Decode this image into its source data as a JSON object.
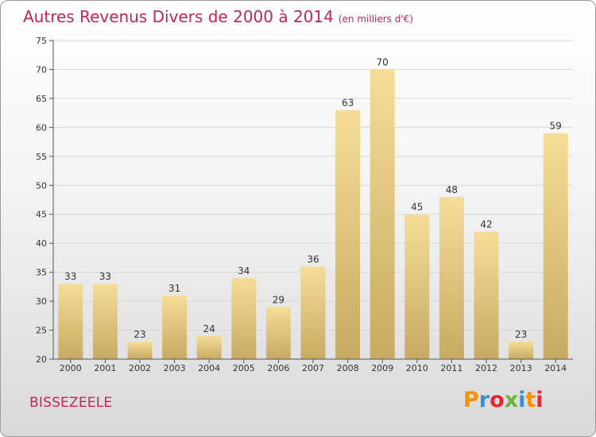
{
  "header": {
    "title": "Autres Revenus Divers de 2000 à 2014",
    "subtitle": "(en milliers d'€)"
  },
  "footer": {
    "town": "BISSEZEELE",
    "logo_text": "Proxiti"
  },
  "colors": {
    "title": "#c1265a",
    "bar_top": "#f5dd98",
    "bar_bottom": "#c7aa63",
    "logo_letters": [
      "#f39200",
      "#3d8fd1",
      "#e3262f",
      "#6fb23b",
      "#3d8fd1",
      "#f39200",
      "#e3262f"
    ]
  },
  "chart_data": {
    "type": "bar",
    "categories": [
      "2000",
      "2001",
      "2002",
      "2003",
      "2004",
      "2005",
      "2006",
      "2007",
      "2008",
      "2009",
      "2010",
      "2011",
      "2012",
      "2013",
      "2014"
    ],
    "values": [
      33,
      33,
      23,
      31,
      24,
      34,
      29,
      36,
      63,
      70,
      45,
      48,
      42,
      23,
      59
    ],
    "value_labels": [
      "33",
      "33",
      "23",
      "31",
      "24",
      "34",
      "29",
      "36",
      "63",
      "70",
      "45",
      "48",
      "42",
      "23",
      "59"
    ],
    "yticks": [
      "20",
      "25",
      "30",
      "35",
      "40",
      "45",
      "50",
      "55",
      "60",
      "65",
      "70",
      "75"
    ],
    "ylim": [
      20,
      75
    ],
    "grid": true
  }
}
